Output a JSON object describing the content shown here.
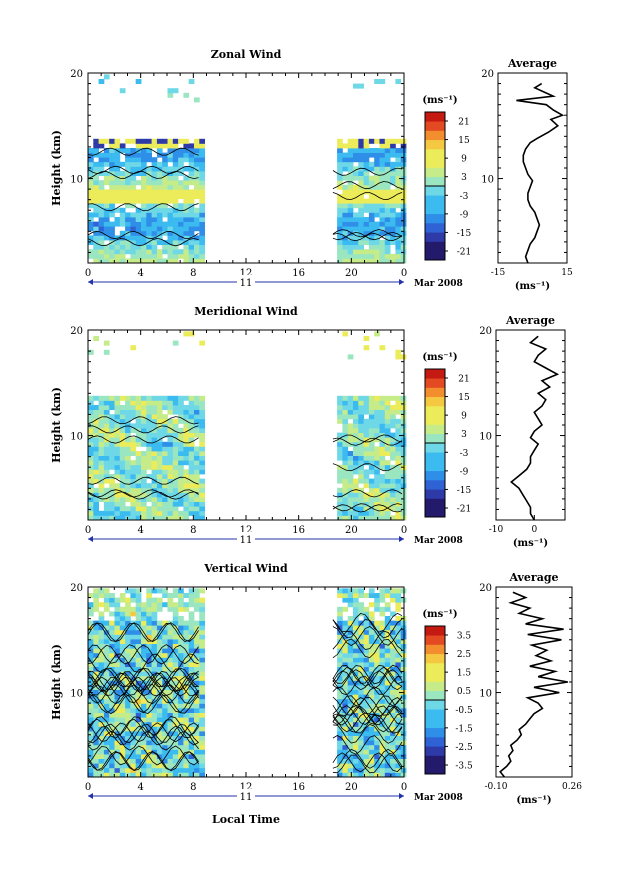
{
  "figure": {
    "xlabel": "Local Time",
    "date_label": "Mar 2008",
    "day_label": "11"
  },
  "chart_data": [
    {
      "type": "heatmap",
      "title": "Zonal Wind",
      "ylabel": "Height (km)",
      "xlim": [
        0,
        24
      ],
      "ylim": [
        2,
        20
      ],
      "x_ticks": [
        "0",
        "4",
        "8",
        "12",
        "16",
        "20",
        "0"
      ],
      "y_ticks": [
        "20",
        "10"
      ],
      "data_gap": [
        8.7,
        18.6
      ],
      "colorbar": {
        "unit": "(ms⁻¹)",
        "ticks": [
          "21",
          "15",
          "9",
          "3",
          "-3",
          "-9",
          "-15",
          "-21"
        ],
        "range": [
          -24,
          24
        ]
      },
      "average_profile": {
        "title": "Average",
        "xlabel": "(ms⁻¹)",
        "x_ticks": [
          "-15",
          "15"
        ],
        "xlim": [
          -15,
          15
        ],
        "y_ticks": [
          "20",
          "10"
        ],
        "heights": [
          2.0,
          2.6,
          3.2,
          3.8,
          4.4,
          5.0,
          5.6,
          6.2,
          6.8,
          7.4,
          8.0,
          8.6,
          9.2,
          9.8,
          10.4,
          11.0,
          11.6,
          12.2,
          12.8,
          13.4,
          13.8,
          14.4,
          15.0,
          15.6,
          16.0,
          16.5,
          17.0,
          17.4,
          17.8,
          18.2,
          18.6,
          19.0
        ],
        "values": [
          -2,
          -3,
          -2,
          -1,
          1,
          2,
          3,
          2,
          1,
          -1,
          -2,
          -2,
          -1,
          0,
          -2,
          -3,
          -4,
          -4,
          -3,
          -1,
          2,
          7,
          11,
          8,
          13,
          9,
          6,
          -7,
          9,
          5,
          1,
          4
        ]
      }
    },
    {
      "type": "heatmap",
      "title": "Meridional Wind",
      "ylabel": "Height (km)",
      "xlim": [
        0,
        24
      ],
      "ylim": [
        2,
        20
      ],
      "x_ticks": [
        "0",
        "4",
        "8",
        "12",
        "16",
        "20",
        "0"
      ],
      "y_ticks": [
        "20",
        "10"
      ],
      "data_gap": [
        8.7,
        18.6
      ],
      "colorbar": {
        "unit": "(ms⁻¹)",
        "ticks": [
          "21",
          "15",
          "9",
          "3",
          "-3",
          "-9",
          "-15",
          "-21"
        ],
        "range": [
          -24,
          24
        ]
      },
      "average_profile": {
        "title": "Average",
        "xlabel": "(ms⁻¹)",
        "x_ticks": [
          "-10",
          "0"
        ],
        "xlim": [
          -10,
          8
        ],
        "y_ticks": [
          "20",
          "10"
        ],
        "heights": [
          2.0,
          2.6,
          3.2,
          3.8,
          4.4,
          5.0,
          5.6,
          6.2,
          6.8,
          7.4,
          8.0,
          8.6,
          9.2,
          9.8,
          10.4,
          11.0,
          11.6,
          12.2,
          12.8,
          13.4,
          14.0,
          14.6,
          15.2,
          15.8,
          16.4,
          17.0,
          17.6,
          18.2,
          18.8,
          19.4
        ],
        "values": [
          0,
          -1,
          -1,
          -2,
          -3,
          -4,
          -6,
          -4,
          -2,
          -1,
          -1,
          0,
          1,
          -1,
          0,
          2,
          1,
          0,
          2,
          3,
          1,
          4,
          2,
          6,
          3,
          0,
          1,
          3,
          -1,
          1
        ]
      }
    },
    {
      "type": "heatmap",
      "title": "Vertical Wind",
      "ylabel": "Height (km)",
      "xlim": [
        0,
        24
      ],
      "ylim": [
        2,
        20
      ],
      "x_ticks": [
        "0",
        "4",
        "8",
        "12",
        "16",
        "20",
        "0"
      ],
      "y_ticks": [
        "20",
        "10"
      ],
      "data_gap": [
        8.7,
        18.6
      ],
      "colorbar": {
        "unit": "(ms⁻¹)",
        "ticks": [
          "3.5",
          "2.5",
          "1.5",
          "0.5",
          "-0.5",
          "-1.5",
          "-2.5",
          "-3.5"
        ],
        "range": [
          -4,
          4
        ]
      },
      "average_profile": {
        "title": "Average",
        "xlabel": "(ms⁻¹)",
        "x_ticks": [
          "-0.10",
          "0.26"
        ],
        "xlim": [
          -0.1,
          0.26
        ],
        "y_ticks": [
          "20",
          "10"
        ],
        "heights": [
          2.0,
          2.5,
          3.0,
          3.5,
          4.0,
          4.5,
          5.0,
          5.5,
          6.0,
          6.5,
          7.0,
          7.5,
          8.0,
          8.5,
          9.0,
          9.5,
          10.0,
          10.5,
          11.0,
          11.5,
          12.0,
          12.5,
          13.0,
          13.5,
          14.0,
          14.5,
          15.0,
          15.5,
          16.0,
          16.5,
          17.0,
          17.5,
          18.0,
          18.5,
          19.0,
          19.5
        ],
        "values": [
          -0.06,
          -0.08,
          -0.05,
          -0.03,
          -0.04,
          -0.02,
          -0.03,
          0.0,
          0.02,
          0.01,
          0.04,
          0.06,
          0.08,
          0.12,
          0.1,
          0.05,
          0.2,
          0.08,
          0.24,
          0.1,
          0.18,
          0.06,
          0.16,
          0.09,
          0.14,
          0.07,
          0.21,
          0.05,
          0.22,
          0.04,
          0.12,
          0.01,
          0.06,
          -0.03,
          0.04,
          -0.02
        ]
      }
    }
  ]
}
